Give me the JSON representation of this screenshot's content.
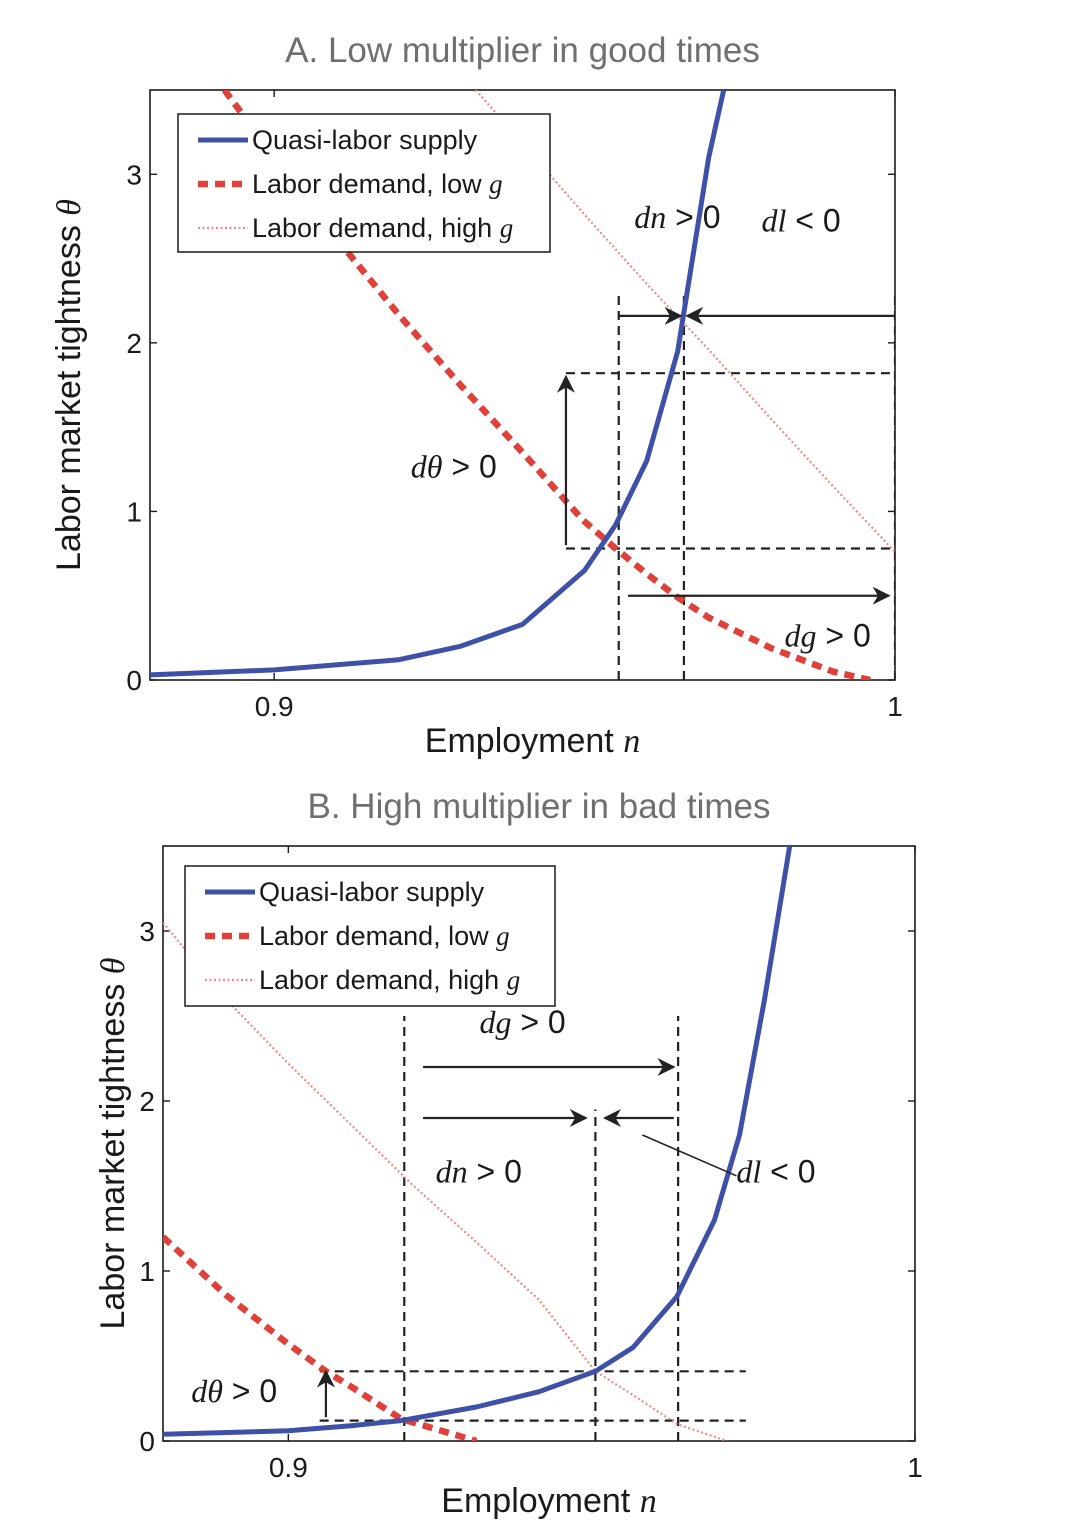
{
  "chart_data": [
    {
      "id": "A",
      "type": "line",
      "title": "A. Low multiplier in good times",
      "xlabel": "Employment",
      "xlabel_var": "n",
      "ylabel": "Labor market tightness",
      "ylabel_var": "θ",
      "xlim": [
        0.88,
        1.0
      ],
      "ylim": [
        0,
        3.5
      ],
      "xticks": [
        {
          "value": 0.9,
          "label": "0.9"
        },
        {
          "value": 1.0,
          "label": "1"
        }
      ],
      "yticks": [
        {
          "value": 0,
          "label": "0"
        },
        {
          "value": 1,
          "label": "1"
        },
        {
          "value": 2,
          "label": "2"
        },
        {
          "value": 3,
          "label": "3"
        }
      ],
      "legend_position": "top-left",
      "legend": [
        {
          "series": "supply",
          "text": "Quasi-labor supply",
          "var": ""
        },
        {
          "series": "demand_low",
          "text": "Labor demand, low ",
          "var": "g"
        },
        {
          "series": "demand_high",
          "text": "Labor demand, high ",
          "var": "g"
        }
      ],
      "series": [
        {
          "name": "Quasi-labor supply",
          "key": "supply",
          "style": "solid",
          "color": "#3F51A7",
          "points": [
            [
              0.88,
              0.03
            ],
            [
              0.9,
              0.06
            ],
            [
              0.92,
              0.12
            ],
            [
              0.93,
              0.2
            ],
            [
              0.94,
              0.33
            ],
            [
              0.95,
              0.65
            ],
            [
              0.955,
              0.92
            ],
            [
              0.96,
              1.3
            ],
            [
              0.965,
              1.95
            ],
            [
              0.97,
              3.1
            ],
            [
              0.9724,
              3.5
            ]
          ]
        },
        {
          "name": "Labor demand, low g",
          "key": "demand_low",
          "style": "dashed",
          "color": "#E0403A",
          "points": [
            [
              0.892,
              3.5
            ],
            [
              0.9,
              3.1
            ],
            [
              0.91,
              2.62
            ],
            [
              0.92,
              2.17
            ],
            [
              0.93,
              1.75
            ],
            [
              0.94,
              1.35
            ],
            [
              0.9497,
              0.95
            ],
            [
              0.955,
              0.78
            ],
            [
              0.96,
              0.63
            ],
            [
              0.965,
              0.49
            ],
            [
              0.97,
              0.37
            ],
            [
              0.98,
              0.19
            ],
            [
              0.99,
              0.05
            ],
            [
              0.996,
              0.0
            ]
          ]
        },
        {
          "name": "Labor demand, high g",
          "key": "demand_high",
          "style": "dotted",
          "color": "#F08A8A",
          "points": [
            [
              0.9325,
              3.5
            ],
            [
              0.95,
              2.76
            ],
            [
              0.96,
              2.35
            ],
            [
              0.97,
              1.96
            ],
            [
              0.98,
              1.55
            ],
            [
              0.99,
              1.15
            ],
            [
              1.0,
              0.76
            ]
          ]
        }
      ],
      "guides": [
        {
          "kind": "v",
          "x": 0.9555,
          "y0": 0,
          "y1": 2.28
        },
        {
          "kind": "v",
          "x": 0.966,
          "y0": 0,
          "y1": 2.3
        },
        {
          "kind": "v",
          "x": 1.0,
          "y0": 0,
          "y1": 2.3
        },
        {
          "kind": "h",
          "y": 0.78,
          "x0": 0.947,
          "x1": 1.0
        },
        {
          "kind": "h",
          "y": 1.82,
          "x0": 0.947,
          "x1": 1.0
        }
      ],
      "arrows": [
        {
          "x1": 0.947,
          "y1": 0.8,
          "x2": 0.947,
          "y2": 1.8
        },
        {
          "x1": 0.9555,
          "y1": 2.16,
          "x2": 0.9655,
          "y2": 2.16
        },
        {
          "x1": 1.0,
          "y1": 2.16,
          "x2": 0.9665,
          "y2": 2.16
        },
        {
          "x1": 0.957,
          "y1": 0.5,
          "x2": 0.999,
          "y2": 0.5
        }
      ],
      "annotations": [
        {
          "var": "dθ",
          "text": " > 0",
          "x": 0.922,
          "y": 1.2
        },
        {
          "var": "dn",
          "text": " > 0",
          "x": 0.958,
          "y": 2.68
        },
        {
          "var": "dl",
          "text": " < 0",
          "x": 0.9785,
          "y": 2.66
        },
        {
          "var": "dg",
          "text": " > 0",
          "x": 0.9822,
          "y": 0.2
        }
      ]
    },
    {
      "id": "B",
      "type": "line",
      "title": "B. High multiplier in bad times",
      "xlabel": "Employment",
      "xlabel_var": "n",
      "ylabel": "Labor market tightness",
      "ylabel_var": "θ",
      "xlim": [
        0.88,
        1.0
      ],
      "ylim": [
        0,
        3.5
      ],
      "xticks": [
        {
          "value": 0.9,
          "label": "0.9"
        },
        {
          "value": 1.0,
          "label": "1"
        }
      ],
      "yticks": [
        {
          "value": 0,
          "label": "0"
        },
        {
          "value": 1,
          "label": "1"
        },
        {
          "value": 2,
          "label": "2"
        },
        {
          "value": 3,
          "label": "3"
        }
      ],
      "legend_position": "top-left",
      "legend": [
        {
          "series": "supply",
          "text": "Quasi-labor supply",
          "var": ""
        },
        {
          "series": "demand_low",
          "text": "Labor demand, low ",
          "var": "g"
        },
        {
          "series": "demand_high",
          "text": "Labor demand, high ",
          "var": "g"
        }
      ],
      "series": [
        {
          "name": "Quasi-labor supply",
          "key": "supply",
          "style": "solid",
          "color": "#3F51A7",
          "points": [
            [
              0.88,
              0.04
            ],
            [
              0.9,
              0.06
            ],
            [
              0.91,
              0.09
            ],
            [
              0.918,
              0.12
            ],
            [
              0.93,
              0.2
            ],
            [
              0.94,
              0.29
            ],
            [
              0.949,
              0.41
            ],
            [
              0.955,
              0.55
            ],
            [
              0.962,
              0.85
            ],
            [
              0.968,
              1.3
            ],
            [
              0.972,
              1.8
            ],
            [
              0.976,
              2.6
            ],
            [
              0.98,
              3.5
            ]
          ]
        },
        {
          "name": "Labor demand, low g",
          "key": "demand_low",
          "style": "dashed",
          "color": "#E0403A",
          "points": [
            [
              0.88,
              1.2
            ],
            [
              0.89,
              0.86
            ],
            [
              0.9,
              0.57
            ],
            [
              0.906,
              0.41
            ],
            [
              0.91,
              0.32
            ],
            [
              0.918,
              0.13
            ],
            [
              0.93,
              0.0
            ]
          ]
        },
        {
          "name": "Labor demand, high g",
          "key": "demand_high",
          "style": "dotted",
          "color": "#F08A8A",
          "points": [
            [
              0.88,
              3.05
            ],
            [
              0.89,
              2.6
            ],
            [
              0.9,
              2.22
            ],
            [
              0.91,
              1.86
            ],
            [
              0.92,
              1.5
            ],
            [
              0.93,
              1.17
            ],
            [
              0.94,
              0.83
            ],
            [
              0.949,
              0.41
            ],
            [
              0.955,
              0.27
            ],
            [
              0.962,
              0.1
            ],
            [
              0.97,
              0.0
            ]
          ]
        }
      ],
      "guides": [
        {
          "kind": "v",
          "x": 0.9185,
          "y0": 0,
          "y1": 2.5
        },
        {
          "kind": "v",
          "x": 0.949,
          "y0": 0,
          "y1": 1.95
        },
        {
          "kind": "v",
          "x": 0.9622,
          "y0": 0,
          "y1": 2.5
        },
        {
          "kind": "h",
          "y": 0.12,
          "x0": 0.905,
          "x1": 0.973
        },
        {
          "kind": "h",
          "y": 0.41,
          "x0": 0.905,
          "x1": 0.973
        }
      ],
      "arrows": [
        {
          "x1": 0.9215,
          "y1": 2.2,
          "x2": 0.9615,
          "y2": 2.2
        },
        {
          "x1": 0.9215,
          "y1": 1.9,
          "x2": 0.9475,
          "y2": 1.9
        },
        {
          "x1": 0.9615,
          "y1": 1.9,
          "x2": 0.9505,
          "y2": 1.9
        },
        {
          "x1": 0.906,
          "y1": 0.14,
          "x2": 0.906,
          "y2": 0.41
        }
      ],
      "pointer": {
        "x1": 0.9565,
        "y1": 1.8,
        "x2": 0.9715,
        "y2": 1.56
      },
      "annotations": [
        {
          "var": "dg",
          "text": " > 0",
          "x": 0.9305,
          "y": 2.4
        },
        {
          "var": "dn",
          "text": " > 0",
          "x": 0.9235,
          "y": 1.52
        },
        {
          "var": "dl",
          "text": " < 0",
          "x": 0.9715,
          "y": 1.52
        },
        {
          "var": "dθ",
          "text": " > 0",
          "x": 0.8845,
          "y": 0.23
        }
      ]
    }
  ]
}
